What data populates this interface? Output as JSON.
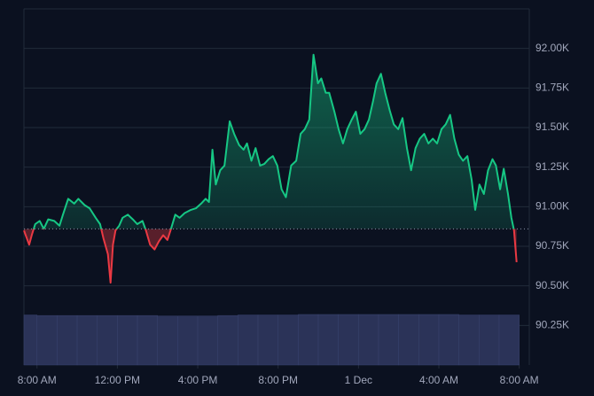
{
  "chart_data": {
    "type": "line",
    "x": [
      -0.65,
      -0.39,
      -0.26,
      -0.09,
      0.13,
      0.34,
      0.56,
      0.86,
      1.12,
      1.29,
      1.55,
      1.85,
      2.06,
      2.37,
      2.62,
      2.92,
      3.14,
      3.31,
      3.53,
      3.66,
      3.78,
      3.91,
      4.09,
      4.26,
      4.52,
      4.77,
      4.99,
      5.25,
      5.42,
      5.63,
      5.85,
      6.06,
      6.28,
      6.49,
      6.67,
      6.88,
      7.1,
      7.35,
      7.66,
      7.91,
      8.17,
      8.39,
      8.56,
      8.73,
      8.9,
      9.12,
      9.33,
      9.59,
      9.81,
      10.06,
      10.28,
      10.45,
      10.67,
      10.88,
      11.1,
      11.31,
      11.53,
      11.74,
      11.96,
      12.17,
      12.39,
      12.65,
      12.9,
      13.12,
      13.33,
      13.55,
      13.76,
      13.98,
      14.15,
      14.37,
      14.54,
      14.8,
      15.01,
      15.23,
      15.44,
      15.66,
      15.87,
      16.09,
      16.3,
      16.52,
      16.73,
      16.9,
      17.12,
      17.33,
      17.55,
      17.76,
      17.98,
      18.19,
      18.41,
      18.62,
      18.84,
      19.05,
      19.27,
      19.48,
      19.7,
      19.91,
      20.13,
      20.34,
      20.56,
      20.77,
      20.99,
      21.2,
      21.42,
      21.63,
      21.81,
      22.02,
      22.24,
      22.45,
      22.67,
      22.84,
      23.05,
      23.23,
      23.44,
      23.61,
      23.74,
      23.87
    ],
    "series": [
      {
        "color": "#16c784",
        "values": [
          90.85,
          90.76,
          90.82,
          90.89,
          90.91,
          90.86,
          90.92,
          90.91,
          90.88,
          90.95,
          91.05,
          91.02,
          91.05,
          91.01,
          90.99,
          90.93,
          90.89,
          90.8,
          90.7,
          90.52,
          90.76,
          90.85,
          90.88,
          90.93,
          90.95,
          90.92,
          90.89,
          90.91,
          90.85,
          90.76,
          90.73,
          90.78,
          90.82,
          90.79,
          90.86,
          90.95,
          90.93,
          90.96,
          90.98,
          90.99,
          91.02,
          91.05,
          91.03,
          91.36,
          91.14,
          91.23,
          91.26,
          91.54,
          91.46,
          91.39,
          91.36,
          91.4,
          91.29,
          91.37,
          91.26,
          91.27,
          91.3,
          91.32,
          91.26,
          91.11,
          91.06,
          91.26,
          91.29,
          91.46,
          91.49,
          91.55,
          91.96,
          91.78,
          91.81,
          91.72,
          91.72,
          91.6,
          91.49,
          91.4,
          91.49,
          91.55,
          91.6,
          91.46,
          91.49,
          91.55,
          91.67,
          91.78,
          91.84,
          91.72,
          91.61,
          91.52,
          91.49,
          91.56,
          91.37,
          91.23,
          91.37,
          91.43,
          91.46,
          91.4,
          91.43,
          91.4,
          91.49,
          91.52,
          91.58,
          91.43,
          91.33,
          91.29,
          91.32,
          91.17,
          90.98,
          91.14,
          91.08,
          91.23,
          91.3,
          91.26,
          91.11,
          91.24,
          91.08,
          90.93,
          90.85,
          90.65
        ]
      }
    ],
    "down_color": "#ea3943",
    "reference_line": 90.86,
    "volume": {
      "color": "#2b3358",
      "x": [
        -0.5,
        0.5,
        1.5,
        2.5,
        3.5,
        4.5,
        5.5,
        6.5,
        7.5,
        8.5,
        9.5,
        10.5,
        11.5,
        12.5,
        13.5,
        14.5,
        15.5,
        16.5,
        17.5,
        18.5,
        19.5,
        20.5,
        21.5,
        22.5,
        23.5
      ],
      "values": [
        97,
        96,
        96,
        96,
        96,
        96,
        96,
        95,
        95,
        95,
        96,
        97,
        97,
        97,
        98,
        98,
        98,
        98,
        98,
        98,
        98,
        98,
        97,
        97,
        97
      ]
    },
    "xlim": [
      -0.65,
      24.5
    ],
    "xticks": [
      {
        "value": 0,
        "label": "8:00 AM"
      },
      {
        "value": 4,
        "label": "12:00 PM"
      },
      {
        "value": 8,
        "label": "4:00 PM"
      },
      {
        "value": 12,
        "label": "8:00 PM"
      },
      {
        "value": 16,
        "label": "1 Dec"
      },
      {
        "value": 20,
        "label": "4:00 AM"
      },
      {
        "value": 24,
        "label": "8:00 AM"
      }
    ],
    "ylim": [
      90.0,
      92.25
    ],
    "yticks": [
      {
        "value": 90.25,
        "label": "90.25K"
      },
      {
        "value": 90.5,
        "label": "90.50K"
      },
      {
        "value": 90.75,
        "label": "90.75K"
      },
      {
        "value": 91.0,
        "label": "91.00K"
      },
      {
        "value": 91.25,
        "label": "91.25K"
      },
      {
        "value": 91.5,
        "label": "91.50K"
      },
      {
        "value": 91.75,
        "label": "91.75K"
      },
      {
        "value": 92.0,
        "label": "92.00K"
      }
    ],
    "grid": true
  }
}
